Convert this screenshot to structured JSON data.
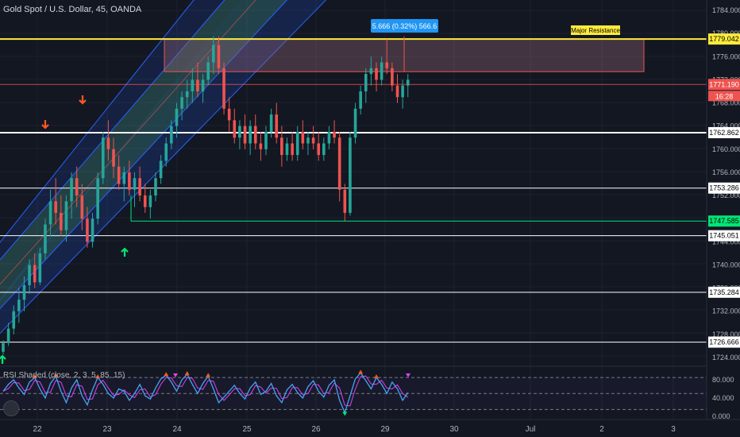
{
  "header": {
    "symbol": "Gold Spot / U.S. Dollar, 45, OANDA"
  },
  "indicator": {
    "title": "RSI Shaded (close, 2, 3, 5, 85, 15)"
  },
  "measure_label": "5.666 (0.32%) 566.6",
  "zone_label": "Major Resistance",
  "countdown": "16:28",
  "colors": {
    "background": "#131722",
    "bull": "#26a69a",
    "bear": "#ef5350",
    "resistance": "#ffeb3b",
    "support_green": "#00e676",
    "level_white": "#ffffff",
    "channel_blue": "#2962ff",
    "channel_green": "#4caf50",
    "rsi_blue": "#42a5f5",
    "rsi_pink": "#e040fb",
    "measure": "#2196f3"
  },
  "chart_data": {
    "type": "candlestick",
    "yaxis": {
      "ylim": [
        1721.5,
        1785.5
      ],
      "ticks": [
        "1784.000",
        "1780.000",
        "1776.000",
        "1772.000",
        "1768.000",
        "1764.000",
        "1760.000",
        "1756.000",
        "1752.000",
        "1748.000",
        "1744.000",
        "1740.000",
        "1736.000",
        "1732.000",
        "1728.000",
        "1724.000"
      ],
      "ylim_values": [
        1724,
        1784
      ]
    },
    "xaxis": {
      "ticks": [
        "22",
        "23",
        "24",
        "25",
        "26",
        "29",
        "30",
        "Jul",
        "2",
        "3"
      ]
    },
    "horizontal_levels": [
      {
        "name": "major-resistance",
        "label": "1779.042",
        "value": 1779.042,
        "color": "#ffeb3b"
      },
      {
        "name": "last-price",
        "label": "1771.190",
        "value": 1771.19,
        "color": "#ef5350"
      },
      {
        "name": "level-1762",
        "label": "1762.862",
        "value": 1762.862,
        "color": "#ffffff"
      },
      {
        "name": "level-1753",
        "label": "1753.286",
        "value": 1753.286,
        "color": "#ffffff"
      },
      {
        "name": "green-support",
        "label": "1747.585",
        "value": 1747.585,
        "color": "#00e676"
      },
      {
        "name": "level-1745",
        "label": "1745.051",
        "value": 1745.051,
        "color": "#ffffff"
      },
      {
        "name": "level-1735",
        "label": "1735.284",
        "value": 1735.284,
        "color": "#ffffff"
      },
      {
        "name": "level-1726",
        "label": "1726.666",
        "value": 1726.666,
        "color": "#ffffff"
      }
    ],
    "resistance_zone": {
      "from": 1773.4,
      "to": 1779.042
    },
    "candles": [
      [
        1725,
        1727,
        1724.5,
        1726.5
      ],
      [
        1726.5,
        1730,
        1726,
        1729
      ],
      [
        1729,
        1733,
        1728,
        1732
      ],
      [
        1732,
        1736,
        1730,
        1734
      ],
      [
        1734,
        1738,
        1732,
        1736.5
      ],
      [
        1736.5,
        1741,
        1735,
        1740
      ],
      [
        1740,
        1742,
        1736,
        1737
      ],
      [
        1737,
        1743,
        1736.5,
        1742
      ],
      [
        1742,
        1748,
        1741,
        1747
      ],
      [
        1747,
        1753,
        1745,
        1751
      ],
      [
        1751,
        1755,
        1747,
        1749
      ],
      [
        1749,
        1752,
        1745,
        1746
      ],
      [
        1746,
        1752,
        1744,
        1751
      ],
      [
        1751,
        1756,
        1748,
        1755
      ],
      [
        1755,
        1757,
        1750,
        1752
      ],
      [
        1752,
        1754,
        1746,
        1748
      ],
      [
        1748,
        1750,
        1743,
        1744
      ],
      [
        1744,
        1749,
        1743,
        1748
      ],
      [
        1748,
        1756,
        1747,
        1755
      ],
      [
        1755,
        1763,
        1754,
        1762
      ],
      [
        1762,
        1765,
        1758,
        1760
      ],
      [
        1760,
        1762,
        1755,
        1757
      ],
      [
        1757,
        1759,
        1753,
        1754
      ],
      [
        1754,
        1757,
        1751,
        1756
      ],
      [
        1756,
        1758,
        1752,
        1753
      ],
      [
        1753,
        1756,
        1750,
        1755
      ],
      [
        1755,
        1757,
        1751,
        1752
      ],
      [
        1752,
        1754,
        1749,
        1750
      ],
      [
        1750,
        1753,
        1748,
        1752
      ],
      [
        1752,
        1756,
        1751,
        1755
      ],
      [
        1755,
        1759,
        1754,
        1758
      ],
      [
        1758,
        1762,
        1757,
        1761
      ],
      [
        1761,
        1765,
        1760,
        1764
      ],
      [
        1764,
        1768,
        1762,
        1767
      ],
      [
        1767,
        1770,
        1765,
        1769
      ],
      [
        1769,
        1772,
        1767,
        1770
      ],
      [
        1770,
        1774,
        1768,
        1772
      ],
      [
        1772,
        1775,
        1769,
        1770
      ],
      [
        1770,
        1773,
        1768,
        1772
      ],
      [
        1772,
        1776,
        1771,
        1775
      ],
      [
        1775,
        1779.5,
        1773,
        1778
      ],
      [
        1778,
        1779.5,
        1773,
        1774
      ],
      [
        1774,
        1775,
        1766,
        1767
      ],
      [
        1767,
        1769,
        1763,
        1765
      ],
      [
        1765,
        1767,
        1761,
        1762
      ],
      [
        1762,
        1765,
        1760,
        1764
      ],
      [
        1764,
        1766,
        1760,
        1761
      ],
      [
        1761,
        1765,
        1759,
        1764
      ],
      [
        1764,
        1766,
        1760,
        1761
      ],
      [
        1761,
        1763,
        1758,
        1760
      ],
      [
        1760,
        1764,
        1759,
        1763
      ],
      [
        1763,
        1767,
        1762,
        1766
      ],
      [
        1766,
        1768,
        1761,
        1762
      ],
      [
        1762,
        1764,
        1757,
        1759
      ],
      [
        1759,
        1762,
        1758,
        1761
      ],
      [
        1761,
        1763,
        1758,
        1759
      ],
      [
        1759,
        1764,
        1758,
        1763
      ],
      [
        1763,
        1765,
        1760,
        1761
      ],
      [
        1761,
        1763,
        1759,
        1762
      ],
      [
        1762,
        1764,
        1760,
        1761
      ],
      [
        1761,
        1763,
        1758,
        1759
      ],
      [
        1759,
        1762,
        1758,
        1761
      ],
      [
        1761,
        1764,
        1760,
        1763
      ],
      [
        1763,
        1765,
        1761,
        1762
      ],
      [
        1762,
        1763,
        1751,
        1753
      ],
      [
        1753,
        1754,
        1747.5,
        1749
      ],
      [
        1749,
        1763,
        1748.5,
        1762
      ],
      [
        1762,
        1768,
        1761,
        1767
      ],
      [
        1767,
        1771,
        1766,
        1770
      ],
      [
        1770,
        1774,
        1768,
        1773
      ],
      [
        1773,
        1776,
        1771,
        1774
      ],
      [
        1774,
        1775,
        1770,
        1772
      ],
      [
        1772,
        1776,
        1771,
        1775
      ],
      [
        1775,
        1779,
        1773,
        1774
      ],
      [
        1774,
        1775,
        1770,
        1771
      ],
      [
        1771,
        1773,
        1768,
        1769
      ],
      [
        1769,
        1772,
        1767,
        1771
      ],
      [
        1771,
        1773,
        1769,
        1772
      ]
    ],
    "rsi": {
      "ylim": [
        -5,
        100
      ],
      "ticks": [
        "80.000",
        "40.000",
        "0.000"
      ],
      "levels": [
        85,
        50,
        15
      ],
      "values": [
        55,
        70,
        80,
        62,
        48,
        75,
        85,
        60,
        40,
        72,
        88,
        55,
        30,
        62,
        80,
        45,
        25,
        58,
        85,
        70,
        50,
        40,
        60,
        55,
        35,
        50,
        70,
        45,
        38,
        62,
        82,
        90,
        75,
        55,
        80,
        92,
        70,
        50,
        72,
        88,
        60,
        30,
        42,
        55,
        68,
        50,
        38,
        62,
        75,
        48,
        55,
        72,
        45,
        30,
        58,
        70,
        52,
        40,
        65,
        78,
        55,
        42,
        68,
        80,
        35,
        8,
        45,
        82,
        95,
        78,
        60,
        85,
        70,
        50,
        75,
        60,
        35,
        52
      ]
    }
  }
}
